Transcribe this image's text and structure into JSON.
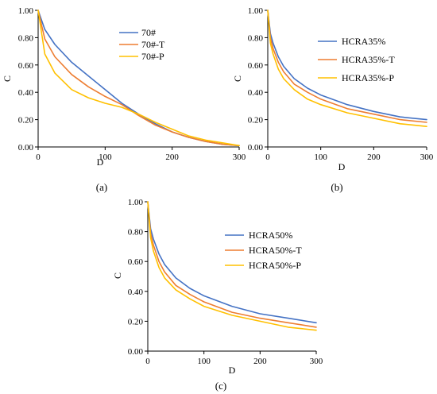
{
  "colors": {
    "blue": "#4472C4",
    "orange": "#ED7D31",
    "yellow": "#FFC000"
  },
  "chart_data": [
    {
      "type": "line",
      "panel_label": "(a)",
      "xlabel": "D",
      "ylabel": "C",
      "xlim": [
        0,
        300
      ],
      "ylim": [
        0,
        1
      ],
      "xticks": [
        "0",
        "100",
        "200",
        "300"
      ],
      "yticks": [
        "0.00",
        "0.20",
        "0.40",
        "0.60",
        "0.80",
        "1.00"
      ],
      "grid": false,
      "legend_position": "top-right",
      "x": [
        0,
        10,
        25,
        50,
        75,
        100,
        125,
        150,
        175,
        200,
        225,
        250,
        275,
        300
      ],
      "series": [
        {
          "name": "70#",
          "color": "#4472C4",
          "values": [
            1.0,
            0.86,
            0.75,
            0.62,
            0.52,
            0.42,
            0.32,
            0.24,
            0.17,
            0.11,
            0.07,
            0.04,
            0.02,
            0.01
          ]
        },
        {
          "name": "70#-T",
          "color": "#ED7D31",
          "values": [
            1.0,
            0.79,
            0.66,
            0.53,
            0.44,
            0.37,
            0.31,
            0.23,
            0.16,
            0.11,
            0.07,
            0.04,
            0.02,
            0.01
          ]
        },
        {
          "name": "70#-P",
          "color": "#FFC000",
          "values": [
            1.0,
            0.68,
            0.54,
            0.42,
            0.36,
            0.32,
            0.29,
            0.24,
            0.18,
            0.13,
            0.08,
            0.05,
            0.03,
            0.01
          ]
        }
      ]
    },
    {
      "type": "line",
      "panel_label": "(b)",
      "xlabel": "D",
      "ylabel": "C",
      "xlim": [
        0,
        300
      ],
      "ylim": [
        0,
        1
      ],
      "xticks": [
        "0",
        "100",
        "200",
        "300"
      ],
      "yticks": [
        "0.00",
        "0.20",
        "0.40",
        "0.60",
        "0.80",
        "1.00"
      ],
      "grid": false,
      "legend_position": "top-right",
      "x": [
        0,
        5,
        10,
        20,
        30,
        50,
        75,
        100,
        150,
        200,
        250,
        300
      ],
      "series": [
        {
          "name": "HCRA35%",
          "color": "#4472C4",
          "values": [
            1.0,
            0.83,
            0.76,
            0.66,
            0.59,
            0.5,
            0.43,
            0.38,
            0.31,
            0.26,
            0.22,
            0.2
          ]
        },
        {
          "name": "HCRA35%-T",
          "color": "#ED7D31",
          "values": [
            1.0,
            0.8,
            0.72,
            0.62,
            0.55,
            0.46,
            0.4,
            0.35,
            0.28,
            0.24,
            0.2,
            0.18
          ]
        },
        {
          "name": "HCRA35%-P",
          "color": "#FFC000",
          "values": [
            1.0,
            0.76,
            0.68,
            0.57,
            0.5,
            0.42,
            0.35,
            0.31,
            0.25,
            0.21,
            0.17,
            0.15
          ]
        }
      ]
    },
    {
      "type": "line",
      "panel_label": "(c)",
      "xlabel": "D",
      "ylabel": "C",
      "xlim": [
        0,
        300
      ],
      "ylim": [
        0,
        1
      ],
      "xticks": [
        "0",
        "100",
        "200",
        "300"
      ],
      "yticks": [
        "0.00",
        "0.20",
        "0.40",
        "0.60",
        "0.80",
        "1.00"
      ],
      "grid": false,
      "legend_position": "top-right",
      "x": [
        0,
        5,
        10,
        20,
        30,
        50,
        75,
        100,
        150,
        200,
        250,
        300
      ],
      "series": [
        {
          "name": "HCRA50%",
          "color": "#4472C4",
          "values": [
            1.0,
            0.82,
            0.75,
            0.65,
            0.58,
            0.49,
            0.42,
            0.37,
            0.3,
            0.25,
            0.22,
            0.19
          ]
        },
        {
          "name": "HCRA50%-T",
          "color": "#ED7D31",
          "values": [
            1.0,
            0.79,
            0.71,
            0.6,
            0.53,
            0.44,
            0.38,
            0.33,
            0.26,
            0.22,
            0.19,
            0.16
          ]
        },
        {
          "name": "HCRA50%-P",
          "color": "#FFC000",
          "values": [
            1.0,
            0.76,
            0.67,
            0.56,
            0.49,
            0.41,
            0.35,
            0.3,
            0.24,
            0.2,
            0.16,
            0.14
          ]
        }
      ]
    }
  ]
}
